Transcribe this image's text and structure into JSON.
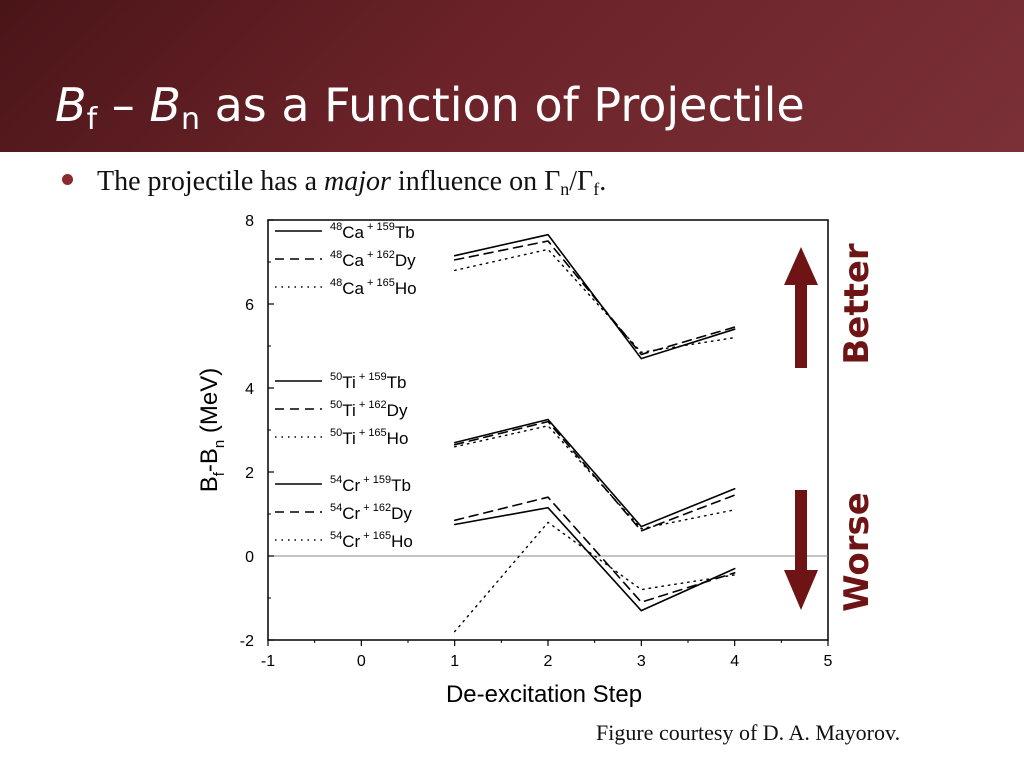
{
  "slide": {
    "title_b1": "B",
    "title_sub1": "f",
    "title_dash": " – ",
    "title_b2": "B",
    "title_sub2": "n",
    "title_rest": " as a Function of Projectile",
    "bullet_pre": "The projectile has a ",
    "bullet_em": "major",
    "bullet_mid": " influence on Γ",
    "bullet_sub1": "n",
    "bullet_slash": "/Γ",
    "bullet_sub2": "f",
    "bullet_end": ".",
    "credit": "Figure courtesy of D. A. Mayorov."
  },
  "colors": {
    "header": "#6b2329",
    "arrow": "#6e1414",
    "bullet": "#8b2a2e"
  },
  "chart_data": {
    "type": "line",
    "xlabel": "De-excitation Step",
    "ylabel_main": "B",
    "ylabel_sub1": "f",
    "ylabel_mid": "-B",
    "ylabel_sub2": "n",
    "ylabel_unit": " (MeV)",
    "xlim": [
      -1,
      5
    ],
    "ylim": [
      -2,
      8
    ],
    "xticks": [
      -1,
      0,
      1,
      2,
      3,
      4,
      5
    ],
    "yticks": [
      -2,
      0,
      2,
      4,
      6,
      8
    ],
    "reference_line_y": 0,
    "series": [
      {
        "proj_mass": "48",
        "proj": "Ca",
        "target_mass": "159",
        "target": "Tb",
        "style": "solid",
        "x": [
          1,
          2,
          3,
          4
        ],
        "y": [
          7.15,
          7.65,
          4.7,
          5.4
        ]
      },
      {
        "proj_mass": "48",
        "proj": "Ca",
        "target_mass": "162",
        "target": "Dy",
        "style": "dashed",
        "x": [
          1,
          2,
          3,
          4
        ],
        "y": [
          7.05,
          7.5,
          4.8,
          5.45
        ]
      },
      {
        "proj_mass": "48",
        "proj": "Ca",
        "target_mass": "165",
        "target": "Ho",
        "style": "dotted",
        "x": [
          1,
          2,
          3,
          4
        ],
        "y": [
          6.8,
          7.3,
          4.85,
          5.2
        ]
      },
      {
        "proj_mass": "50",
        "proj": "Ti",
        "target_mass": "159",
        "target": "Tb",
        "style": "solid",
        "x": [
          1,
          2,
          3,
          4
        ],
        "y": [
          2.7,
          3.25,
          0.7,
          1.6
        ]
      },
      {
        "proj_mass": "50",
        "proj": "Ti",
        "target_mass": "162",
        "target": "Dy",
        "style": "dashed",
        "x": [
          1,
          2,
          3,
          4
        ],
        "y": [
          2.65,
          3.2,
          0.6,
          1.45
        ]
      },
      {
        "proj_mass": "50",
        "proj": "Ti",
        "target_mass": "165",
        "target": "Ho",
        "style": "dotted",
        "x": [
          1,
          2,
          3,
          4
        ],
        "y": [
          2.6,
          3.1,
          0.65,
          1.1
        ]
      },
      {
        "proj_mass": "54",
        "proj": "Cr",
        "target_mass": "159",
        "target": "Tb",
        "style": "solid",
        "x": [
          1,
          2,
          3,
          4
        ],
        "y": [
          0.75,
          1.15,
          -1.3,
          -0.3
        ]
      },
      {
        "proj_mass": "54",
        "proj": "Cr",
        "target_mass": "162",
        "target": "Dy",
        "style": "dashed",
        "x": [
          1,
          2,
          3,
          4
        ],
        "y": [
          0.85,
          1.4,
          -1.1,
          -0.4
        ]
      },
      {
        "proj_mass": "54",
        "proj": "Cr",
        "target_mass": "165",
        "target": "Ho",
        "style": "dotted",
        "x": [
          1,
          2,
          3,
          4
        ],
        "y": [
          -1.8,
          0.8,
          -0.8,
          -0.45
        ]
      }
    ],
    "annotations": {
      "better": "Better",
      "worse": "Worse"
    }
  }
}
